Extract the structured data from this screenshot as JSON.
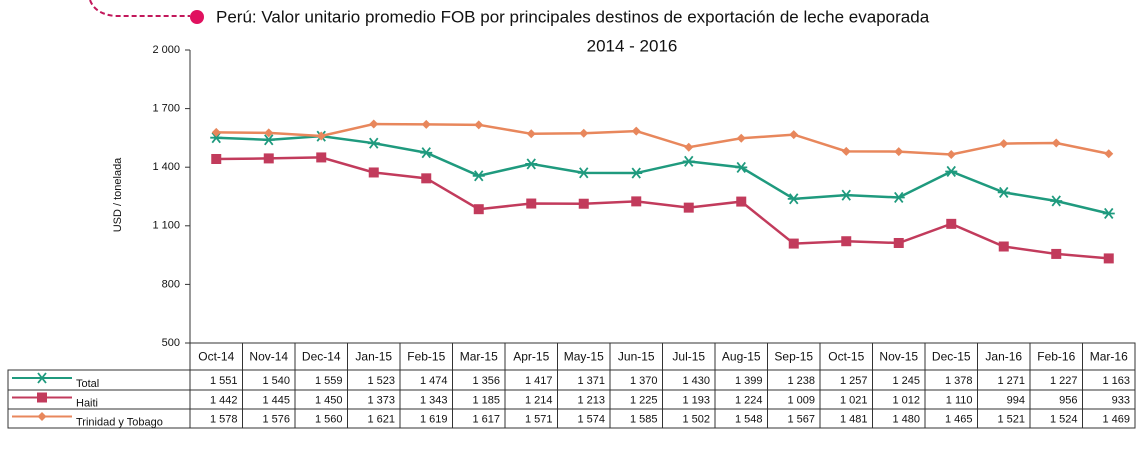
{
  "chart_data": {
    "type": "line",
    "title": "Perú: Valor unitario promedio FOB por principales destinos de exportación de leche evaporada",
    "subtitle": "2014 - 2016",
    "y_label": "USD / tonelada",
    "categories": [
      "Oct-14",
      "Nov-14",
      "Dec-14",
      "Jan-15",
      "Feb-15",
      "Mar-15",
      "Apr-15",
      "May-15",
      "Jun-15",
      "Jul-15",
      "Aug-15",
      "Sep-15",
      "Oct-15",
      "Nov-15",
      "Dec-15",
      "Jan-16",
      "Feb-16",
      "Mar-16"
    ],
    "series": [
      {
        "name": "Total",
        "color": "#1f9a7e",
        "marker": "asterisk",
        "values": [
          1551,
          1540,
          1559,
          1523,
          1474,
          1356,
          1417,
          1371,
          1370,
          1430,
          1399,
          1238,
          1257,
          1245,
          1378,
          1271,
          1227,
          1163
        ],
        "value_labels": [
          "1 551",
          "1 540",
          "1 559",
          "1 523",
          "1 474",
          "1 356",
          "1 417",
          "1 371",
          "1 370",
          "1 430",
          "1 399",
          "1 238",
          "1 257",
          "1 245",
          "1 378",
          "1 271",
          "1 227",
          "1 163"
        ]
      },
      {
        "name": "Haiti",
        "color": "#c23b5c",
        "marker": "square",
        "values": [
          1442,
          1445,
          1450,
          1373,
          1343,
          1185,
          1214,
          1213,
          1225,
          1193,
          1224,
          1009,
          1021,
          1012,
          1110,
          994,
          956,
          933
        ],
        "value_labels": [
          "1 442",
          "1 445",
          "1 450",
          "1 373",
          "1 343",
          "1 185",
          "1 214",
          "1 213",
          "1 225",
          "1 193",
          "1 224",
          "1 009",
          "1 021",
          "1 012",
          "1 110",
          "994",
          "956",
          "933"
        ]
      },
      {
        "name": "Trinidad y Tobago",
        "color": "#e8875c",
        "marker": "diamond",
        "values": [
          1578,
          1576,
          1560,
          1621,
          1619,
          1617,
          1571,
          1574,
          1585,
          1502,
          1548,
          1567,
          1481,
          1480,
          1465,
          1521,
          1524,
          1469
        ],
        "value_labels": [
          "1 578",
          "1 576",
          "1 560",
          "1 621",
          "1 619",
          "1 617",
          "1 571",
          "1 574",
          "1 585",
          "1 502",
          "1 548",
          "1 567",
          "1 481",
          "1 480",
          "1 465",
          "1 521",
          "1 524",
          "1 469"
        ]
      }
    ],
    "ylim": [
      500,
      2000
    ],
    "yticks": [
      500,
      800,
      {
        "value": 1100,
        "label": "1 100"
      },
      {
        "value": 1400,
        "label": "1 400"
      },
      {
        "value": 1700,
        "label": "1 700"
      },
      {
        "value": 2000,
        "label": "2 000"
      }
    ],
    "grid": false
  }
}
